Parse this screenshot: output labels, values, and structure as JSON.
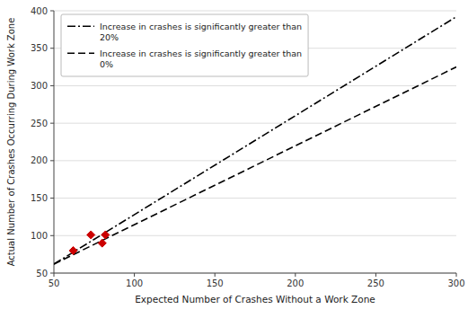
{
  "chart_data": {
    "type": "line",
    "xlabel": "Expected Number of Crashes Without a Work Zone",
    "ylabel": "Actual Number of Crashes Occurring During Work Zone",
    "xlim": [
      50,
      300
    ],
    "ylim": [
      50,
      400
    ],
    "xticks": [
      50,
      100,
      150,
      200,
      250,
      300
    ],
    "yticks": [
      50,
      100,
      150,
      200,
      250,
      300,
      350,
      400
    ],
    "grid": true,
    "legend": "upper left",
    "series": [
      {
        "name": "Increase in crashes is significantly greater than\n20%",
        "color": "#000000",
        "line_style": "dashdot",
        "x": [
          50,
          300
        ],
        "values": [
          62,
          392
        ]
      },
      {
        "name": "Increase in crashes is significantly greater than\n0%",
        "color": "#000000",
        "line_style": "dashed",
        "x": [
          50,
          300
        ],
        "values": [
          62,
          325
        ]
      },
      {
        "type": "scatter",
        "color": "#cc0000",
        "marker": "diamond",
        "x": [
          62,
          73,
          82,
          80
        ],
        "values": [
          80,
          101,
          101,
          90
        ]
      }
    ]
  }
}
